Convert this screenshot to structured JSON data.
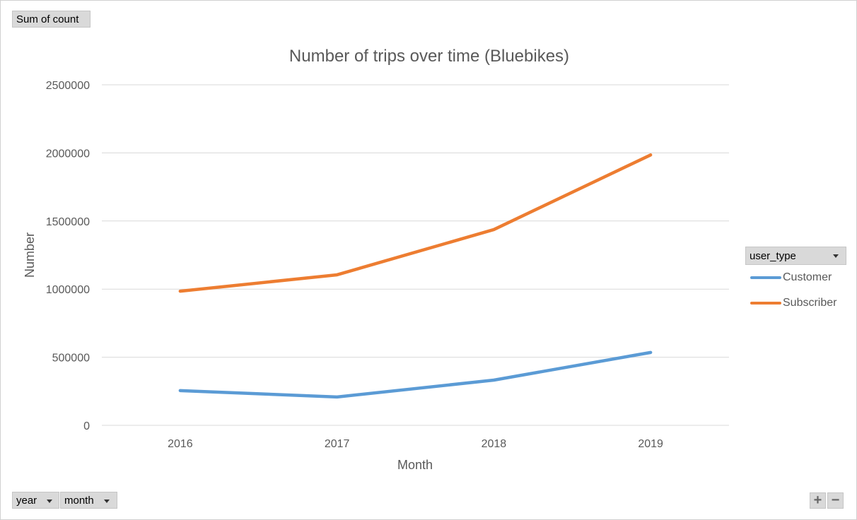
{
  "pivot": {
    "value_field": "Sum of count",
    "axis_fields": [
      "year",
      "month"
    ],
    "legend_field": "user_type",
    "zoom_in_label": "+",
    "zoom_out_label": "−"
  },
  "colors": {
    "customer": "#5b9bd5",
    "subscriber": "#ed7d31",
    "grid": "#d9d9d9",
    "text": "#595959"
  },
  "chart_data": {
    "type": "line",
    "title": "Number of trips over time (Bluebikes)",
    "xlabel": "Month",
    "ylabel": "Number",
    "categories": [
      "2016",
      "2017",
      "2018",
      "2019"
    ],
    "ylim": [
      0,
      2500000
    ],
    "yticks": [
      0,
      500000,
      1000000,
      1500000,
      2000000,
      2500000
    ],
    "grid": true,
    "legend_position": "right",
    "series": [
      {
        "name": "Customer",
        "color": "#5b9bd5",
        "values": [
          255000,
          208000,
          332000,
          535000
        ]
      },
      {
        "name": "Subscriber",
        "color": "#ed7d31",
        "values": [
          985000,
          1105000,
          1437000,
          1985000
        ]
      }
    ]
  }
}
